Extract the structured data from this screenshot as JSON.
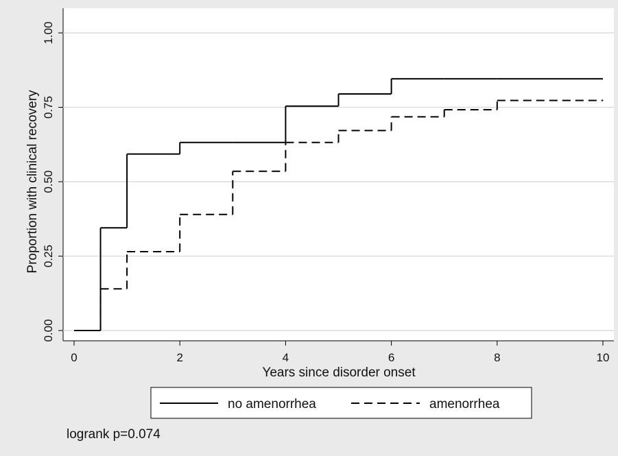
{
  "chart_data": {
    "type": "step",
    "x_label": "Years since disorder onset",
    "y_label": "Proportion with clinical recovery",
    "x": [
      0,
      0.5,
      1,
      2,
      3,
      4,
      5,
      6,
      7,
      8,
      10
    ],
    "series": [
      {
        "name": "no amenorrhea",
        "color": "#000000",
        "dash": "solid",
        "values": [
          0,
          0.345,
          0.593,
          0.632,
          0.632,
          0.754,
          0.795,
          0.846,
          0.846,
          0.846,
          0.846
        ]
      },
      {
        "name": "amenorrhea",
        "color": "#000000",
        "dash": "dashed",
        "values": [
          0,
          0.14,
          0.265,
          0.39,
          0.535,
          0.632,
          0.672,
          0.718,
          0.742,
          0.773,
          0.773
        ]
      }
    ],
    "xlim": [
      0,
      10
    ],
    "xticks": [
      0,
      2,
      4,
      6,
      8,
      10
    ],
    "ylim": [
      0,
      1
    ],
    "yticks": [
      {
        "value": 0,
        "label": "0.00"
      },
      {
        "value": 0.25,
        "label": "0.25"
      },
      {
        "value": 0.5,
        "label": "0.50"
      },
      {
        "value": 0.75,
        "label": "0.75"
      },
      {
        "value": 1,
        "label": "1.00"
      }
    ],
    "grid": true,
    "legend": "bottom",
    "annotation": "logrank p=0.074"
  }
}
